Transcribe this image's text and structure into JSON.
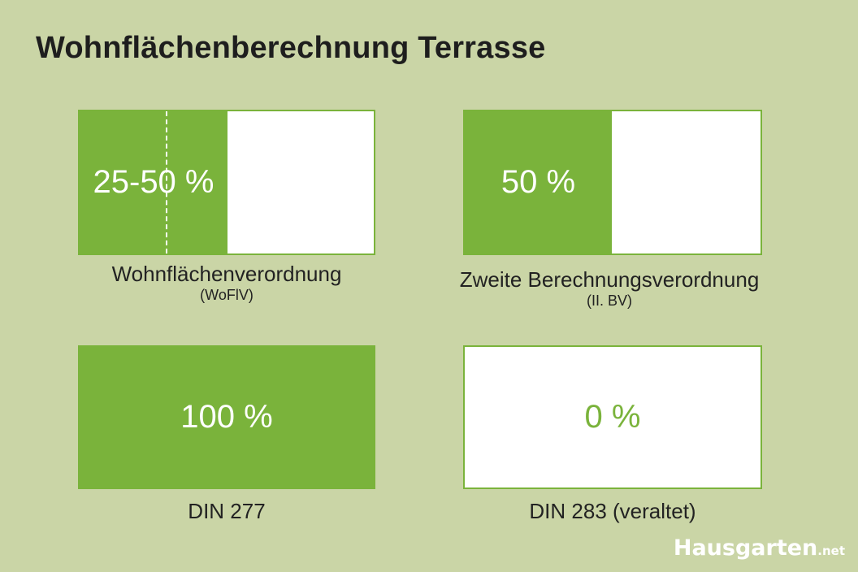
{
  "title": "Wohnflächenberechnung Terrasse",
  "colors": {
    "background": "#cad5a6",
    "accent": "#7ab33b",
    "box_background": "#ffffff"
  },
  "cards": [
    {
      "value_label": "25-50 %",
      "fill_percent_range": [
        25,
        50
      ],
      "caption": "Wohnflächenverordnung",
      "subcaption": "(WoFlV)"
    },
    {
      "value_label": "50 %",
      "fill_percent": 50,
      "caption": "Zweite Berechnungsverordnung",
      "subcaption": "(II. BV)"
    },
    {
      "value_label": "100 %",
      "fill_percent": 100,
      "caption": "DIN 277"
    },
    {
      "value_label": "0 %",
      "fill_percent": 0,
      "caption": "DIN 283 (veraltet)"
    }
  ],
  "logo": {
    "name": "Hausgarten",
    "suffix": ".net"
  }
}
